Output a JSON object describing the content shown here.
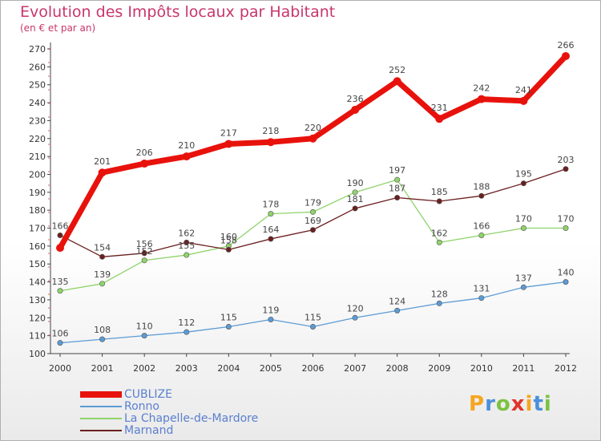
{
  "title": "Evolution des Impôts locaux par Habitant",
  "subtitle": "(en € et par an)",
  "logo": {
    "text": "Proxiti",
    "colors": [
      "#f5a623",
      "#4a90d9",
      "#7cc242",
      "#e0352b",
      "#f5a623",
      "#4a90d9",
      "#7cc242"
    ]
  },
  "chart_data": {
    "type": "line",
    "categories": [
      "2000",
      "2001",
      "2002",
      "2003",
      "2004",
      "2005",
      "2006",
      "2007",
      "2008",
      "2009",
      "2010",
      "2011",
      "2012"
    ],
    "ylim": [
      100,
      270
    ],
    "yticks": [
      100,
      110,
      120,
      130,
      140,
      150,
      160,
      170,
      180,
      190,
      200,
      210,
      220,
      230,
      240,
      250,
      260,
      270
    ],
    "grid": false,
    "legend": "bottom-left",
    "series": [
      {
        "name": "CUBLIZE",
        "color": "#e8120c",
        "width": 7,
        "values": [
          159,
          201,
          206,
          210,
          217,
          218,
          220,
          236,
          252,
          231,
          242,
          241,
          266
        ]
      },
      {
        "name": "Ronno",
        "color": "#5b9bd5",
        "width": 1.3,
        "values": [
          106,
          108,
          110,
          112,
          115,
          119,
          115,
          120,
          124,
          128,
          131,
          137,
          140
        ]
      },
      {
        "name": "La Chapelle-de-Mardore",
        "color": "#8fd36a",
        "width": 1.3,
        "values": [
          135,
          139,
          152,
          155,
          160,
          178,
          179,
          190,
          197,
          162,
          166,
          170,
          170
        ]
      },
      {
        "name": "Marnand",
        "color": "#6b1f1f",
        "width": 1.3,
        "values": [
          166,
          154,
          156,
          162,
          158,
          164,
          169,
          181,
          187,
          185,
          188,
          195,
          203
        ]
      }
    ],
    "point_labels": [
      {
        "series": 0,
        "values": [
          "",
          "201",
          "206",
          "210",
          "217",
          "218",
          "220",
          "236",
          "252",
          "231",
          "242",
          "241",
          "266"
        ]
      },
      {
        "series": 1,
        "values": [
          "106",
          "108",
          "110",
          "112",
          "115",
          "119",
          "115",
          "120",
          "124",
          "128",
          "131",
          "137",
          "140"
        ]
      },
      {
        "series": 2,
        "values": [
          "135",
          "139",
          "152",
          "155",
          "160",
          "178",
          "179",
          "190",
          "197",
          "162",
          "166",
          "170",
          "170"
        ]
      },
      {
        "series": 3,
        "values": [
          "166",
          "154",
          "156",
          "162",
          "158",
          "164",
          "169",
          "181",
          "187",
          "185",
          "188",
          "195",
          "203"
        ]
      }
    ]
  }
}
